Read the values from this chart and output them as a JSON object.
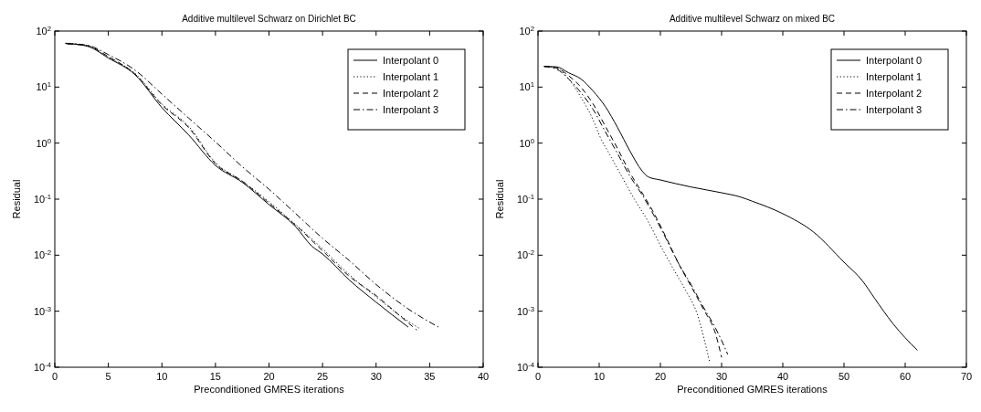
{
  "chart_data": [
    {
      "type": "line",
      "title": "Additive multilevel Schwarz on Dirichlet BC",
      "xlabel": "Preconditioned GMRES iterations",
      "ylabel": "Residual",
      "log": "y",
      "legend": "top right",
      "grid": false,
      "xlim": [
        0,
        40
      ],
      "xticks": [
        0,
        5,
        10,
        15,
        20,
        25,
        30,
        35,
        40
      ],
      "ylim": [
        0.0001,
        100
      ],
      "yticks": [
        {
          "value": 0.0001,
          "label": "10$^{-4}$"
        },
        {
          "value": 0.001,
          "label": "10$^{-3}$"
        },
        {
          "value": 0.01,
          "label": "10$^{-2}$"
        },
        {
          "value": 0.1,
          "label": "10$^{-1}$"
        },
        {
          "value": 1,
          "label": "10$^{0}$"
        },
        {
          "value": 10,
          "label": "10$^{1}$"
        },
        {
          "value": 100,
          "label": "10$^{2}$"
        }
      ],
      "series": [
        {
          "name": "Interpolant 0",
          "color": "#000000",
          "line_style": "solid",
          "x": [
            1,
            3,
            5,
            7.5,
            10,
            12.5,
            15,
            17.5,
            20,
            22.5,
            24,
            25,
            27.5,
            30,
            33
          ],
          "values": [
            60,
            54,
            33,
            16.6,
            4.3,
            1.4,
            0.4,
            0.2,
            0.08,
            0.032,
            0.0145,
            0.0105,
            0.0036,
            0.00145,
            0.00052
          ]
        },
        {
          "name": "Interpolant 1",
          "color": "#000000",
          "line_style": "dotted",
          "x": [
            1,
            3,
            5,
            7.5,
            10,
            12.5,
            15,
            17.5,
            20,
            22.5,
            25,
            27.5,
            30,
            32,
            34
          ],
          "values": [
            61,
            55,
            34,
            17.5,
            5,
            2,
            0.45,
            0.21,
            0.09,
            0.035,
            0.013,
            0.0045,
            0.0018,
            0.0009,
            0.0005
          ]
        },
        {
          "name": "Interpolant 2",
          "color": "#000000",
          "line_style": "dashed",
          "x": [
            1.2,
            3,
            5,
            7.5,
            10,
            12.5,
            15,
            17.5,
            20,
            22.5,
            25,
            27.5,
            30,
            32,
            33.8
          ],
          "values": [
            59,
            55,
            35,
            17,
            4.8,
            1.9,
            0.43,
            0.21,
            0.085,
            0.034,
            0.012,
            0.0042,
            0.0019,
            0.0009,
            0.00046
          ]
        },
        {
          "name": "Interpolant 3",
          "color": "#000000",
          "line_style": "dashdot",
          "x": [
            1,
            3,
            5,
            7.5,
            10,
            12.5,
            15,
            17.5,
            20,
            22.5,
            25,
            27.5,
            30,
            33,
            36
          ],
          "values": [
            60,
            56,
            38,
            20,
            7.5,
            2.8,
            1.05,
            0.38,
            0.15,
            0.055,
            0.02,
            0.008,
            0.003,
            0.0011,
            0.0005
          ]
        }
      ]
    },
    {
      "type": "line",
      "title": "Additive multilevel Schwarz on mixed BC",
      "xlabel": "Preconditioned GMRES iterations",
      "ylabel": "Residual",
      "log": "y",
      "legend": "top right",
      "grid": false,
      "xlim": [
        0,
        70
      ],
      "xticks": [
        0,
        10,
        20,
        30,
        40,
        50,
        60,
        70
      ],
      "ylim": [
        0.0001,
        100
      ],
      "yticks": [
        {
          "value": 0.0001,
          "label": "10$^{-4}$"
        },
        {
          "value": 0.001,
          "label": "10$^{-3}$"
        },
        {
          "value": 0.01,
          "label": "10$^{-2}$"
        },
        {
          "value": 0.1,
          "label": "10$^{-1}$"
        },
        {
          "value": 1,
          "label": "10$^{0}$"
        },
        {
          "value": 10,
          "label": "10$^{1}$"
        },
        {
          "value": 100,
          "label": "10$^{2}$"
        }
      ],
      "series": [
        {
          "name": "Interpolant 0",
          "color": "#000000",
          "line_style": "solid",
          "x": [
            1,
            3,
            5,
            7,
            9,
            11,
            13,
            15,
            17,
            18,
            20,
            25,
            30,
            33,
            35,
            40,
            45,
            50,
            53,
            55,
            58,
            62
          ],
          "values": [
            23.4,
            23,
            18,
            14,
            8.5,
            4.5,
            1.9,
            0.73,
            0.32,
            0.25,
            0.22,
            0.165,
            0.13,
            0.11,
            0.092,
            0.055,
            0.026,
            0.0075,
            0.0035,
            0.0017,
            0.0006,
            0.0002
          ]
        },
        {
          "name": "Interpolant 1",
          "color": "#000000",
          "line_style": "dotted",
          "x": [
            1,
            3,
            5,
            7,
            9,
            10,
            12,
            14,
            16,
            18,
            20,
            22,
            24,
            26,
            28
          ],
          "values": [
            23.4,
            22,
            14,
            6.6,
            2.6,
            1.4,
            0.55,
            0.22,
            0.09,
            0.04,
            0.015,
            0.006,
            0.0025,
            0.0009,
            0.00013
          ]
        },
        {
          "name": "Interpolant 2",
          "color": "#000000",
          "line_style": "dashed",
          "x": [
            1,
            3,
            5,
            7,
            9,
            11,
            13,
            15,
            17,
            19,
            21,
            23,
            25,
            27,
            29,
            30
          ],
          "values": [
            23.4,
            22,
            16,
            10,
            5,
            2,
            0.8,
            0.3,
            0.13,
            0.055,
            0.02,
            0.007,
            0.0028,
            0.0011,
            0.0004,
            0.00015
          ]
        },
        {
          "name": "Interpolant 3",
          "color": "#000000",
          "line_style": "dashdot",
          "x": [
            1,
            3,
            5,
            7,
            9,
            11,
            13,
            15,
            17,
            19,
            21,
            23,
            25,
            27,
            29,
            30,
            31
          ],
          "values": [
            23.4,
            21,
            14,
            8,
            4,
            1.6,
            0.65,
            0.26,
            0.12,
            0.05,
            0.019,
            0.007,
            0.003,
            0.0012,
            0.0005,
            0.0003,
            0.00017
          ]
        }
      ]
    }
  ]
}
